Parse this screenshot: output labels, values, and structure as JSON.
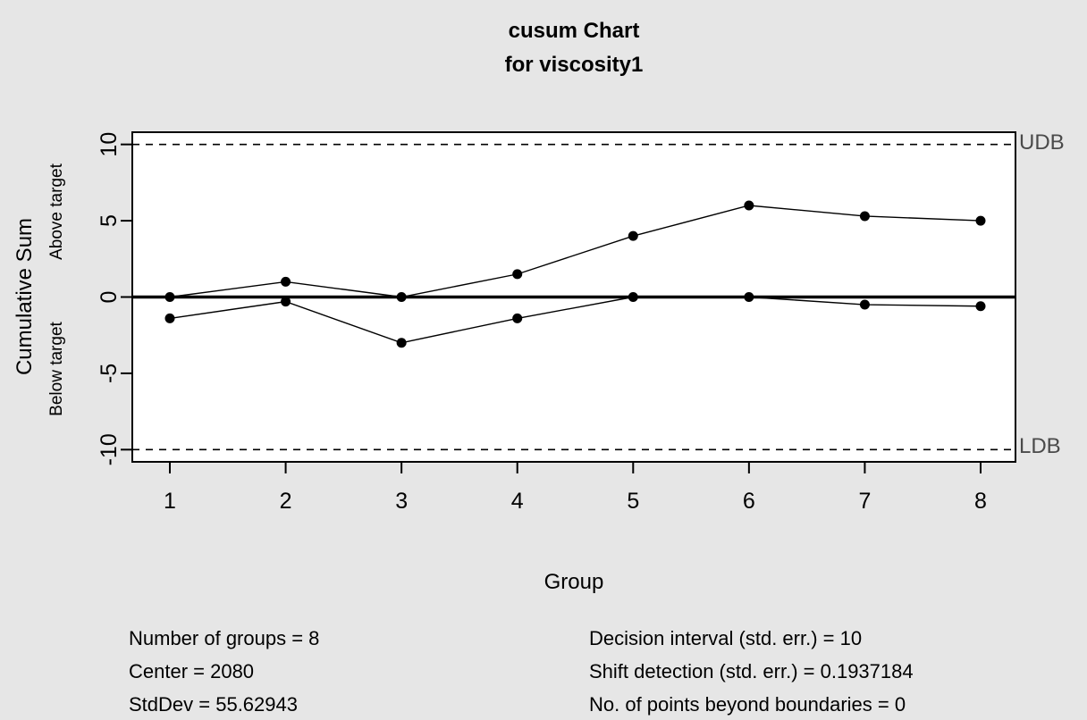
{
  "chart_data": {
    "type": "line",
    "title": "cusum Chart",
    "subtitle": "for viscosity1",
    "xlabel": "Group",
    "ylabel": "Cumulative Sum",
    "ylabel_above": "Above target",
    "ylabel_below": "Below target",
    "x": [
      1,
      2,
      3,
      4,
      5,
      6,
      7,
      8
    ],
    "xticks": [
      1,
      2,
      3,
      4,
      5,
      6,
      7,
      8
    ],
    "yticks": [
      10,
      5,
      0,
      -5,
      -10
    ],
    "ylim": [
      -10.8,
      10.8
    ],
    "series": [
      {
        "name": "Above target",
        "values": [
          0,
          1,
          0,
          1.5,
          4,
          6,
          5.3,
          5
        ]
      },
      {
        "name": "Below target",
        "values": [
          -1.4,
          -0.3,
          -3,
          -1.4,
          0,
          0,
          -0.5,
          -0.6
        ]
      }
    ],
    "boundaries": {
      "upper": {
        "value": 10,
        "label": "UDB"
      },
      "lower": {
        "value": -10,
        "label": "LDB"
      }
    },
    "center_line": 0,
    "grid": false,
    "legend": "none",
    "colors": {
      "background": "#e6e6e6",
      "panel": "#ffffff",
      "line": "#000000",
      "boundary_label": "#4a4a4a"
    }
  },
  "stats": {
    "col1": [
      "Number of groups = 8",
      "Center = 2080",
      "StdDev = 55.62943"
    ],
    "col2": [
      "Decision interval (std. err.) = 10",
      "Shift detection (std. err.) = 0.1937184",
      "No. of points beyond boundaries = 0"
    ]
  }
}
